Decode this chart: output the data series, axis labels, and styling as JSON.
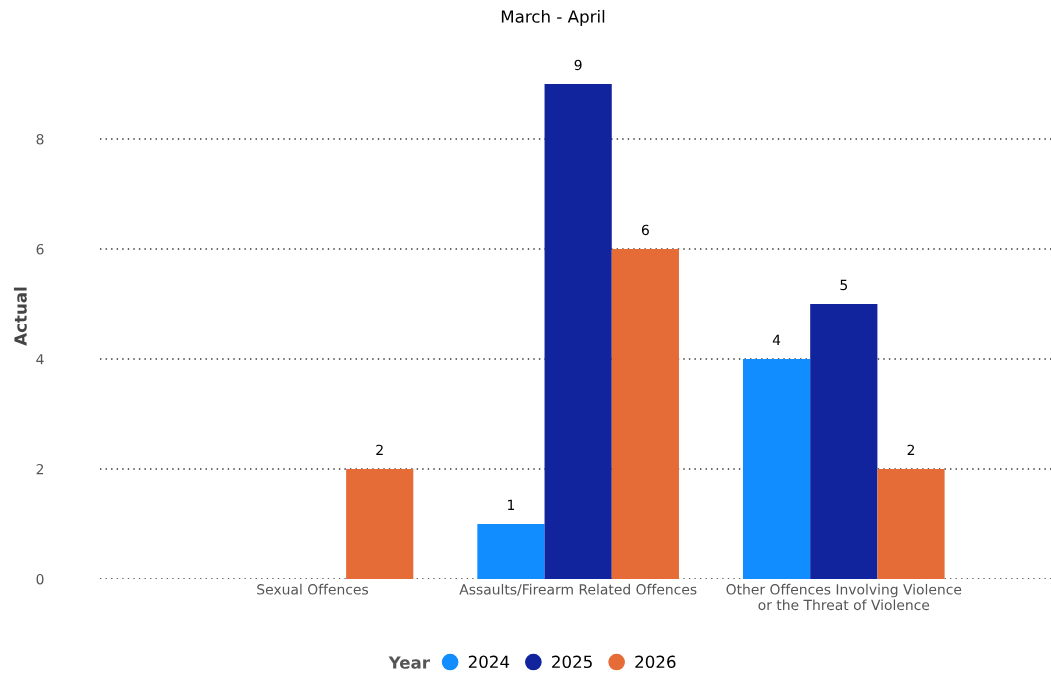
{
  "chart_data": {
    "type": "bar",
    "title": "March - April",
    "ylabel": "Actual",
    "legend_title": "Year",
    "categories": [
      "Sexual Offences",
      "Assaults/Firearm Related Offences",
      "Other Offences Involving Violence\nor the Threat of Violence"
    ],
    "series": [
      {
        "name": "2024",
        "color": "#118dff",
        "values": [
          null,
          1,
          4
        ]
      },
      {
        "name": "2025",
        "color": "#12239e",
        "values": [
          null,
          9,
          5
        ]
      },
      {
        "name": "2026",
        "color": "#e66c37",
        "values": [
          2,
          6,
          2
        ]
      }
    ],
    "ylim": [
      0,
      9
    ],
    "yticks": [
      0,
      2,
      4,
      6,
      8
    ],
    "grid": "y",
    "legend": "bottom",
    "data_labels": true
  }
}
